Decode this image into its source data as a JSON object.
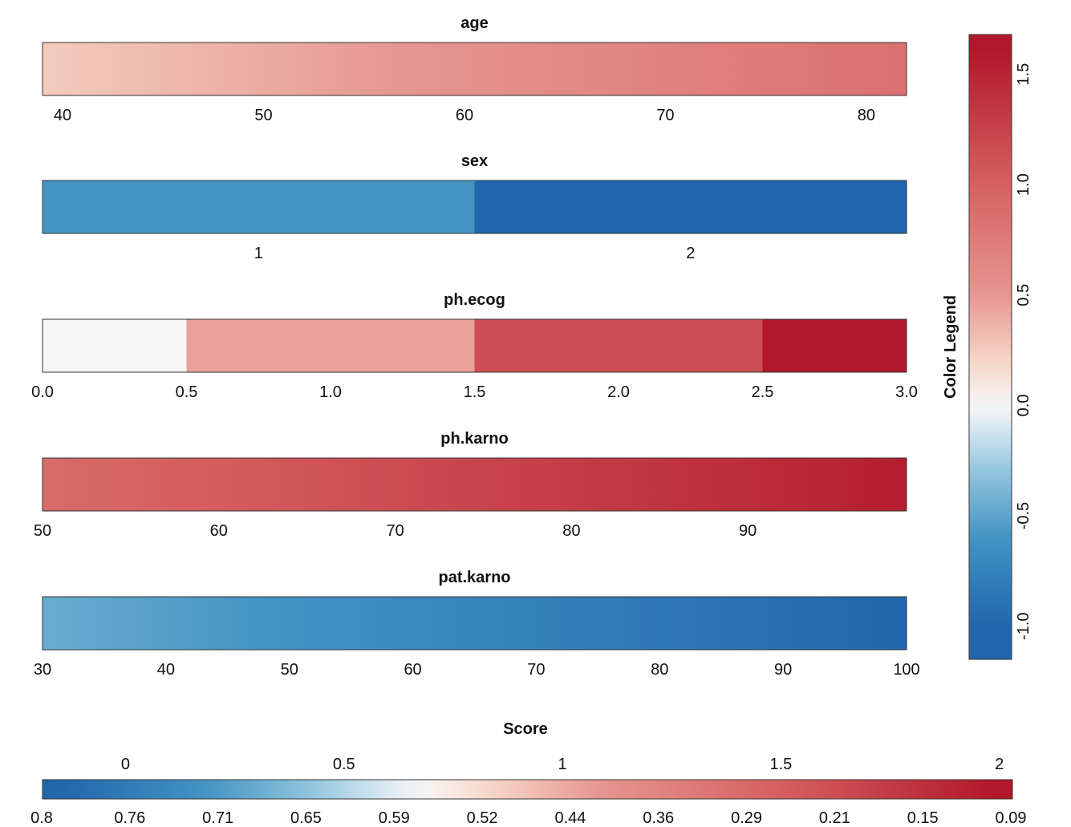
{
  "chart_data": {
    "type": "heatmap",
    "panels": [
      {
        "title": "age",
        "ticks": [
          "40",
          "50",
          "60",
          "70",
          "80"
        ],
        "tick_values": [
          40,
          50,
          60,
          70,
          80
        ],
        "xlim": [
          39,
          82
        ],
        "mode": "gradient",
        "value_range": [
          0.25,
          0.85
        ]
      },
      {
        "title": "sex",
        "ticks": [
          "1",
          "2"
        ],
        "tick_values": [
          1,
          2
        ],
        "xlim": [
          0.5,
          2.5
        ],
        "mode": "steps",
        "segments": [
          {
            "from": 0.5,
            "to": 1.5,
            "value": -0.6
          },
          {
            "from": 1.5,
            "to": 2.5,
            "value": -1.0
          }
        ]
      },
      {
        "title": "ph.ecog",
        "ticks": [
          "0.0",
          "0.5",
          "1.0",
          "1.5",
          "2.0",
          "2.5",
          "3.0"
        ],
        "tick_values": [
          0,
          0.5,
          1,
          1.5,
          2,
          2.5,
          3
        ],
        "xlim": [
          0,
          3
        ],
        "mode": "steps",
        "segments": [
          {
            "from": 0,
            "to": 0.5,
            "value": 0.0
          },
          {
            "from": 0.5,
            "to": 1.5,
            "value": 0.45
          },
          {
            "from": 1.5,
            "to": 2.5,
            "value": 1.15
          },
          {
            "from": 2.5,
            "to": 3.0,
            "value": 1.65
          }
        ]
      },
      {
        "title": "ph.karno",
        "ticks": [
          "50",
          "60",
          "70",
          "80",
          "90"
        ],
        "tick_values": [
          50,
          60,
          70,
          80,
          90
        ],
        "xlim": [
          50,
          99
        ],
        "mode": "gradient",
        "value_range": [
          0.9,
          1.55
        ]
      },
      {
        "title": "pat.karno",
        "ticks": [
          "30",
          "40",
          "50",
          "60",
          "70",
          "80",
          "90",
          "100"
        ],
        "tick_values": [
          30,
          40,
          50,
          60,
          70,
          80,
          90,
          100
        ],
        "xlim": [
          30,
          100
        ],
        "mode": "gradient",
        "value_range": [
          -0.45,
          -1.0
        ]
      }
    ],
    "color_legend": {
      "title": "Color Legend",
      "ticks": [
        "-1.0",
        "-0.5",
        "0.0",
        "0.5",
        "1.0",
        "1.5"
      ],
      "tick_values": [
        -1.0,
        -0.5,
        0.0,
        0.5,
        1.0,
        1.5
      ],
      "range": [
        -1.15,
        1.68
      ]
    },
    "score_legend": {
      "title": "Score",
      "top_ticks": [
        "0",
        "0.5",
        "1",
        "1.5",
        "2"
      ],
      "top_tick_values": [
        0,
        0.5,
        1,
        1.5,
        2
      ],
      "top_range": [
        -0.19,
        2.03
      ],
      "bottom_ticks": [
        "0.8",
        "0.76",
        "0.71",
        "0.65",
        "0.59",
        "0.52",
        "0.44",
        "0.36",
        "0.29",
        "0.21",
        "0.15",
        "0.09"
      ]
    },
    "colors": {
      "negative": "#2166ac",
      "neutral": "#f7f7f7",
      "positive": "#b2182b"
    }
  }
}
